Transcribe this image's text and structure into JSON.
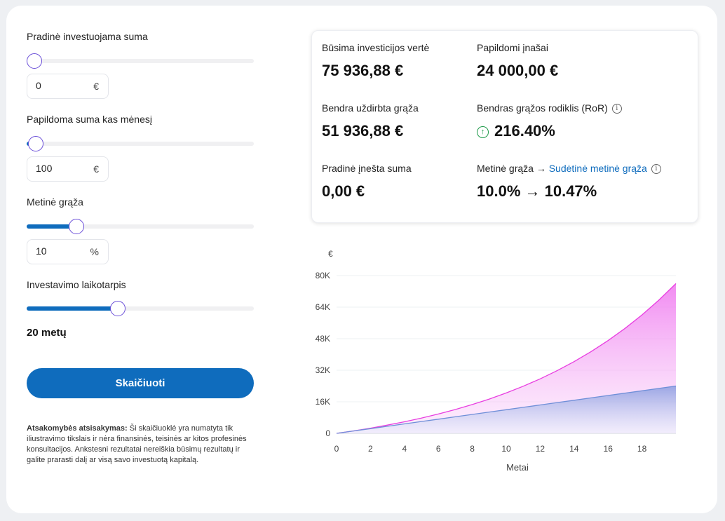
{
  "form": {
    "initial": {
      "label": "Pradinė investuojama suma",
      "value": "0",
      "unit": "€",
      "level": 0
    },
    "monthly": {
      "label": "Papildoma suma kas mėnesį",
      "value": "100",
      "unit": "€",
      "level": 0.04
    },
    "return": {
      "label": "Metinė grąža",
      "value": "10",
      "unit": "%",
      "level": 0.22
    },
    "period": {
      "label": "Investavimo laikotarpis",
      "value": "20 metų",
      "level": 0.4
    },
    "calculate_label": "Skaičiuoti",
    "disclaimer_title": "Atsakomybės atsisakymas:",
    "disclaimer_text": "Ši skaičiuoklė yra numatyta tik iliustravimo tikslais ir nėra finansinės, teisinės ar kitos profesinės konsultacijos. Ankstesni rezultatai nereiškia būsimų rezultatų ir galite prarasti dalį ar visą savo investuotą kapitalą."
  },
  "results": {
    "future_value": {
      "label": "Būsima investicijos vertė",
      "value": "75 936,88 €"
    },
    "contributions": {
      "label": "Papildomi įnašai",
      "value": "24 000,00 €"
    },
    "total_return": {
      "label": "Bendra uždirbta grąža",
      "value": "51 936,88 €"
    },
    "ror": {
      "label": "Bendras grąžos rodiklis (RoR)",
      "value": "216.40%"
    },
    "initial_deposit": {
      "label": "Pradinė įnešta suma",
      "value": "0,00 €"
    },
    "annual": {
      "label": "Metinė grąža →",
      "link": "Sudėtinė metinė grąža",
      "value": "10.0% → 10.47%"
    }
  },
  "colors": {
    "accent": "#0f6cbd",
    "thumb_border": "#6a4ed8",
    "growth_line": "#e83ee0",
    "contrib_line": "#6f8fd8",
    "up_green": "#1f9a4a"
  },
  "chart_data": {
    "type": "area",
    "ylabel": "€",
    "xlabel": "Metai",
    "ylim": [
      0,
      80000
    ],
    "xlim": [
      0,
      20
    ],
    "y_ticks": [
      "0",
      "16K",
      "32K",
      "48K",
      "64K",
      "80K"
    ],
    "x_ticks": [
      "0",
      "2",
      "4",
      "6",
      "8",
      "10",
      "12",
      "14",
      "16",
      "18"
    ],
    "x": [
      0,
      1,
      2,
      3,
      4,
      5,
      6,
      7,
      8,
      9,
      10,
      11,
      12,
      13,
      14,
      15,
      16,
      17,
      18,
      19,
      20
    ],
    "series": [
      {
        "values": [
          0,
          1257,
          2645,
          4179,
          5874,
          7744,
          9810,
          12093,
          14615,
          17402,
          20481,
          23883,
          27640,
          31791,
          36377,
          41444,
          47040,
          53223,
          60054,
          67600,
          75937
        ]
      },
      {
        "values": [
          0,
          1200,
          2400,
          3600,
          4800,
          6000,
          7200,
          8400,
          9600,
          10800,
          12000,
          13200,
          14400,
          15600,
          16800,
          18000,
          19200,
          20400,
          21600,
          22800,
          24000
        ]
      }
    ]
  }
}
